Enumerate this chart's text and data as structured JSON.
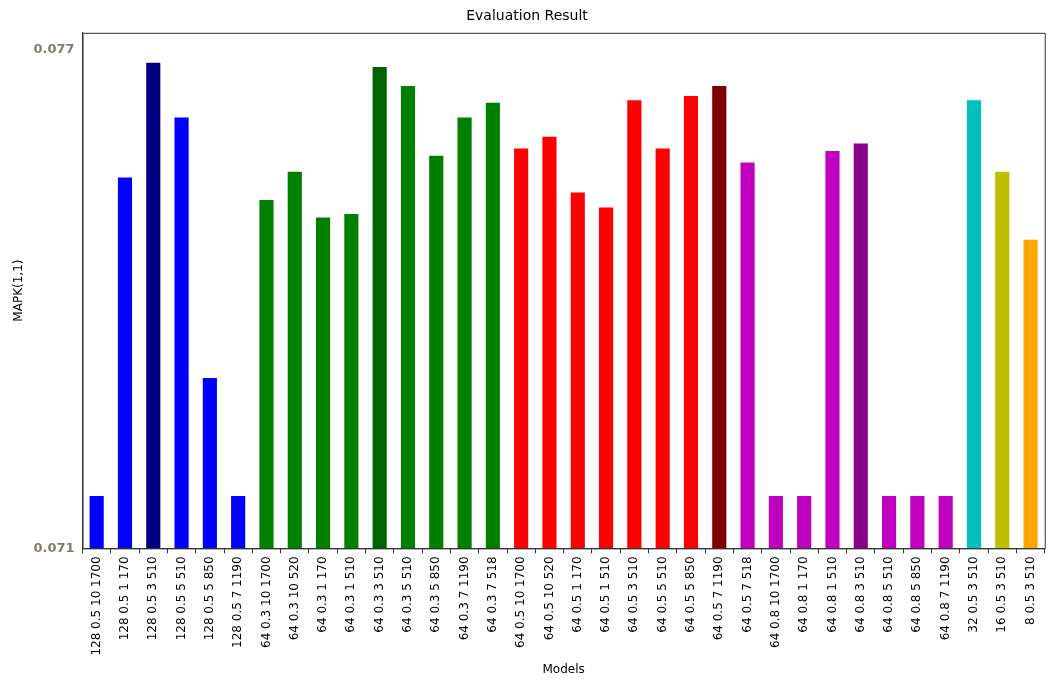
{
  "chart_data": {
    "type": "bar",
    "title": "Evaluation Result",
    "xlabel": "Models",
    "ylabel": "MAPK(1,1)",
    "categories": [
      "128 0.5 10 1700",
      "128 0.5 1 170",
      "128 0.5 3 510",
      "128 0.5 5 510",
      "128 0.5 5 850",
      "128 0.5 7 1190",
      "64 0.3 10 1700",
      "64 0.3 10 520",
      "64 0.3 1 170",
      "64 0.3 1 510",
      "64 0.3 3 510",
      "64 0.3 5 510",
      "64 0.3 5 850",
      "64 0.3 7 1190",
      "64 0.3 7 518",
      "64 0.5 10 1700",
      "64 0.5 10 520",
      "64 0.5 1 170",
      "64 0.5 1 510",
      "64 0.5 3 510",
      "64 0.5 5 510",
      "64 0.5 5 850",
      "64 0.5 7 1190",
      "64 0.5 7 518",
      "64 0.8 10 1700",
      "64 0.8 1 170",
      "64 0.8 1 510",
      "64 0.8 3 510",
      "64 0.8 5 510",
      "64 0.8 5 850",
      "64 0.8 7 1190",
      "32 0.5 3 510",
      "16 0.5 3 510",
      "8 0.5 3 510"
    ],
    "values": [
      0.07163,
      0.07546,
      0.07684,
      0.07618,
      0.07305,
      0.07163,
      0.07519,
      0.07553,
      0.07498,
      0.07502,
      0.07679,
      0.07656,
      0.07572,
      0.07618,
      0.07636,
      0.07581,
      0.07595,
      0.07528,
      0.0751,
      0.07639,
      0.07581,
      0.07644,
      0.07656,
      0.07564,
      0.07163,
      0.07163,
      0.07578,
      0.07587,
      0.07163,
      0.07163,
      0.07163,
      0.07639,
      0.07553,
      0.07471
    ],
    "colors": [
      "#0000ff",
      "#0000ff",
      "#000080",
      "#0000ff",
      "#0000ff",
      "#0000ff",
      "#008000",
      "#008000",
      "#008000",
      "#008000",
      "#006400",
      "#008000",
      "#008000",
      "#008000",
      "#008000",
      "#ff0000",
      "#ff0000",
      "#ff0000",
      "#ff0000",
      "#ff0000",
      "#ff0000",
      "#ff0000",
      "#800000",
      "#bf00bf",
      "#bf00bf",
      "#bf00bf",
      "#bf00bf",
      "#8b008b",
      "#bf00bf",
      "#bf00bf",
      "#bf00bf",
      "#00bfbf",
      "#bfbf00",
      "#ffa500"
    ],
    "ylim": [
      0.071,
      0.0772
    ],
    "yticks": [
      0.071,
      0.077
    ],
    "grid": false,
    "legend": false
  }
}
